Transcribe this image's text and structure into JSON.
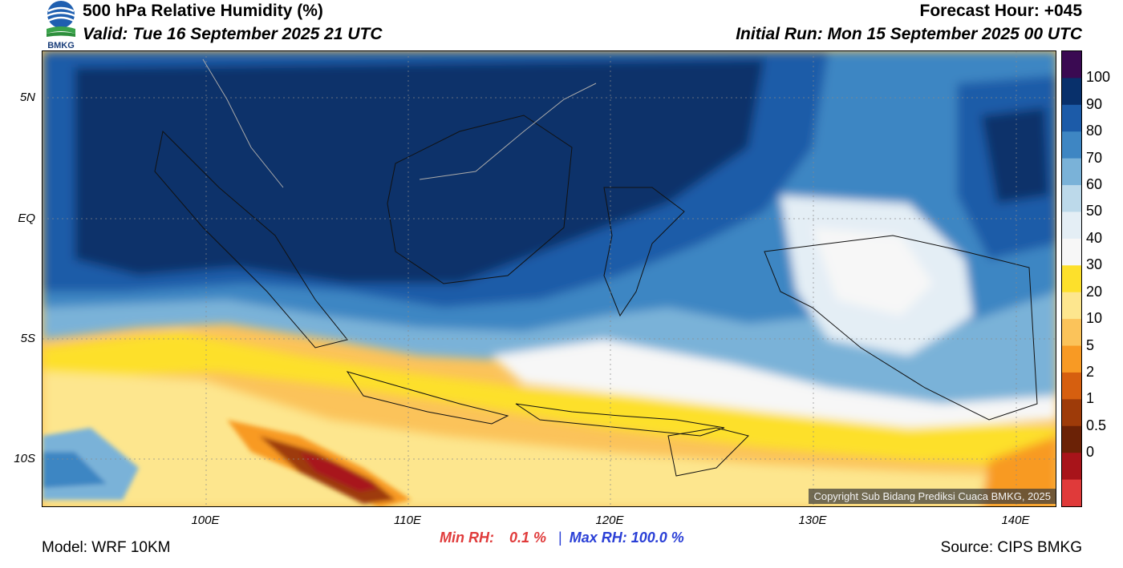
{
  "header": {
    "title": "500 hPa Relative Humidity (%)",
    "valid": "Valid: Tue 16 September 2025 21 UTC",
    "forecast_hour": "Forecast Hour: +045",
    "initial_run": "Initial Run: Mon 15 September 2025 00 UTC",
    "logo_text": "BMKG"
  },
  "map": {
    "lat_ticks": [
      "5N",
      "EQ",
      "5S",
      "10S"
    ],
    "lon_ticks": [
      "100E",
      "110E",
      "120E",
      "130E",
      "140E"
    ],
    "copyright": "Copyright Sub Bidang Prediksi Cuaca BMKG, 2025"
  },
  "colorbar": {
    "labels": [
      "100",
      "90",
      "80",
      "70",
      "60",
      "50",
      "40",
      "30",
      "20",
      "10",
      "5",
      "2",
      "1",
      "0.5",
      "0"
    ],
    "colors": [
      "#3a0a52",
      "#08306b",
      "#1c5ba8",
      "#3e86c3",
      "#7ab2d8",
      "#bcd9ea",
      "#e4eef5",
      "#f7f7f7",
      "#fde02b",
      "#fde68e",
      "#fbc35a",
      "#f89a24",
      "#d65f0f",
      "#9e3b09",
      "#6b2206",
      "#a8141a",
      "#e03a3a"
    ]
  },
  "stats": {
    "min_label": "Min RH:",
    "min_value": "0.1 %",
    "separator": "|",
    "max_label": "Max RH: 100.0 %"
  },
  "footer": {
    "model": "Model: WRF 10KM",
    "source": "Source: CIPS BMKG"
  }
}
